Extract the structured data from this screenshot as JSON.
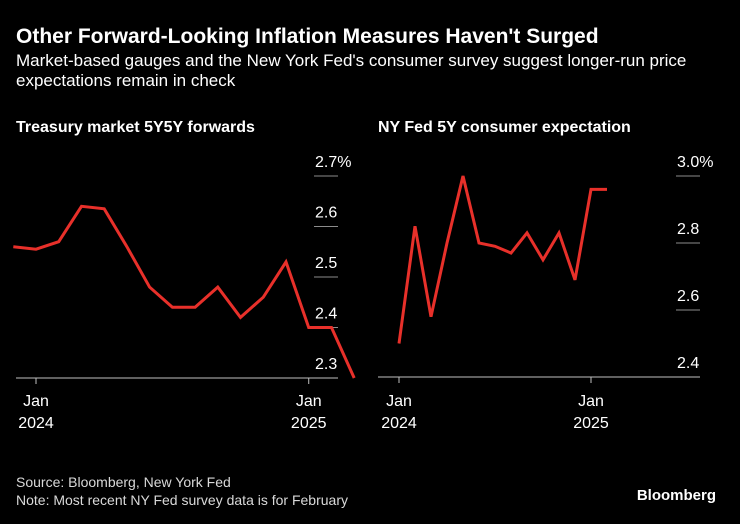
{
  "header": {
    "title": "Other Forward-Looking Inflation Measures Haven't Surged",
    "subtitle": "Market-based gauges and the New York Fed's consumer survey suggest longer-run price expectations remain in check"
  },
  "chart_data": [
    {
      "type": "line",
      "title": "Treasury market 5Y5Y forwards",
      "x": [
        "2023-12",
        "2024-01",
        "2024-02",
        "2024-03",
        "2024-04",
        "2024-05",
        "2024-06",
        "2024-07",
        "2024-08",
        "2024-09",
        "2024-10",
        "2024-11",
        "2024-12",
        "2025-01",
        "2025-02",
        "2025-03",
        "2025-04"
      ],
      "series": [
        {
          "values": [
            2.56,
            2.555,
            2.57,
            2.64,
            2.635,
            2.56,
            2.48,
            2.44,
            2.44,
            2.48,
            2.42,
            2.46,
            2.53,
            2.4,
            2.4,
            2.3,
            null
          ]
        }
      ],
      "y_ticks": [
        "2.7%",
        "2.6",
        "2.5",
        "2.4",
        "2.3"
      ],
      "x_ticks": [
        {
          "x": "2024-01",
          "label1": "Jan",
          "label2": "2024"
        },
        {
          "x": "2025-01",
          "label1": "Jan",
          "label2": "2025"
        }
      ],
      "ylim": [
        2.28,
        2.72
      ],
      "grid": true,
      "color": "#e8302a"
    },
    {
      "type": "line",
      "title": "NY Fed 5Y consumer expectation",
      "x": [
        "2024-01",
        "2024-02",
        "2024-03",
        "2024-04",
        "2024-05",
        "2024-06",
        "2024-07",
        "2024-08",
        "2024-09",
        "2024-10",
        "2024-11",
        "2024-12",
        "2025-01",
        "2025-02"
      ],
      "series": [
        {
          "values": [
            2.5,
            2.85,
            2.58,
            2.8,
            3.0,
            2.8,
            2.79,
            2.77,
            2.83,
            2.75,
            2.83,
            2.69,
            2.96,
            2.96
          ]
        }
      ],
      "y_ticks": [
        "3.0%",
        "2.8",
        "2.6",
        "2.4"
      ],
      "x_ticks": [
        {
          "x": "2024-01",
          "label1": "Jan",
          "label2": "2024"
        },
        {
          "x": "2025-01",
          "label1": "Jan",
          "label2": "2025"
        }
      ],
      "ylim": [
        2.35,
        3.05
      ],
      "grid": true,
      "color": "#e8302a"
    }
  ],
  "footer": {
    "source": "Source: Bloomberg, New York Fed",
    "note": "Note: Most recent NY Fed survey data is for February",
    "brand": "Bloomberg"
  }
}
